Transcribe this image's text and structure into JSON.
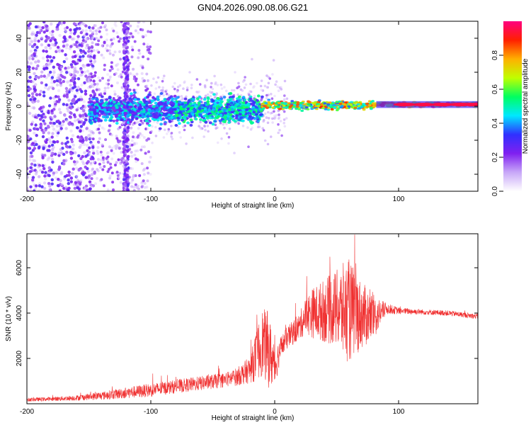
{
  "title": "GN04.2026.090.08.06.G21",
  "chart_data": [
    {
      "type": "heatmap",
      "title": "GN04.2026.090.08.06.G21",
      "xlabel": "Height of straight line (km)",
      "ylabel": "Frequency (Hz)",
      "xlim": [
        -200,
        164
      ],
      "ylim": [
        -50,
        50
      ],
      "xticks": [
        -200,
        -100,
        0,
        100
      ],
      "yticks": [
        -40,
        -20,
        0,
        20,
        40
      ],
      "colorbar": {
        "label": "Normalized spectral amplitude",
        "range": [
          0,
          1
        ],
        "ticks": [
          0.0,
          0.2,
          0.4,
          0.6,
          0.8
        ],
        "tick_labels": [
          "0.0",
          "0.2",
          "0.4",
          "0.6",
          "0.8"
        ],
        "colormap": [
          "#ffffff",
          "#c8a8f8",
          "#8020f0",
          "#3030ff",
          "#00e8ff",
          "#00ff60",
          "#c0ff00",
          "#ffb000",
          "#ff2000",
          "#ff0080"
        ]
      },
      "regions": [
        {
          "x": [
            -200,
            -150
          ],
          "freq_spread": "full band -50 to 50",
          "amplitude": "0.1-0.3"
        },
        {
          "x": [
            -150,
            -100
          ],
          "freq_spread": "-50 to 50 (sparse), dense near 0",
          "amplitude": "0.1-0.3"
        },
        {
          "x": [
            -100,
            -10
          ],
          "freq_spread": "-20 to 15",
          "amplitude": "0.2-0.5"
        },
        {
          "x": [
            -10,
            80
          ],
          "freq_spread": "-5 to 5",
          "amplitude": "0.4-0.9"
        },
        {
          "x": [
            80,
            164
          ],
          "freq_spread": "-2 to 3, centered ~1",
          "amplitude": "0.8-1.0"
        }
      ]
    },
    {
      "type": "line",
      "xlabel": "Height of straight line (km)",
      "ylabel": "SNR (10 * v/v)",
      "xlim": [
        -200,
        164
      ],
      "ylim": [
        0,
        7500
      ],
      "xticks": [
        -200,
        -100,
        0,
        100
      ],
      "yticks": [
        2000,
        4000,
        6000
      ],
      "color": "#f03030",
      "series": [
        {
          "name": "SNR",
          "x": [
            -200,
            -180,
            -160,
            -140,
            -120,
            -100,
            -80,
            -60,
            -40,
            -30,
            -20,
            -15,
            -10,
            -5,
            0,
            5,
            10,
            20,
            25,
            30,
            40,
            50,
            55,
            60,
            65,
            70,
            80,
            90,
            100,
            120,
            140,
            164
          ],
          "mean": [
            180,
            210,
            260,
            350,
            480,
            600,
            760,
            900,
            1050,
            1200,
            1500,
            2100,
            2700,
            2400,
            1600,
            2500,
            2900,
            3400,
            3900,
            4000,
            4100,
            4200,
            4100,
            4100,
            4000,
            3900,
            3800,
            4200,
            4100,
            4050,
            4000,
            3850
          ],
          "spread": [
            80,
            90,
            120,
            180,
            250,
            300,
            300,
            320,
            330,
            400,
            600,
            1100,
            1500,
            1700,
            900,
            500,
            500,
            600,
            800,
            1100,
            1400,
            1700,
            2100,
            2300,
            1900,
            1500,
            1000,
            250,
            150,
            120,
            120,
            120
          ]
        }
      ]
    }
  ]
}
